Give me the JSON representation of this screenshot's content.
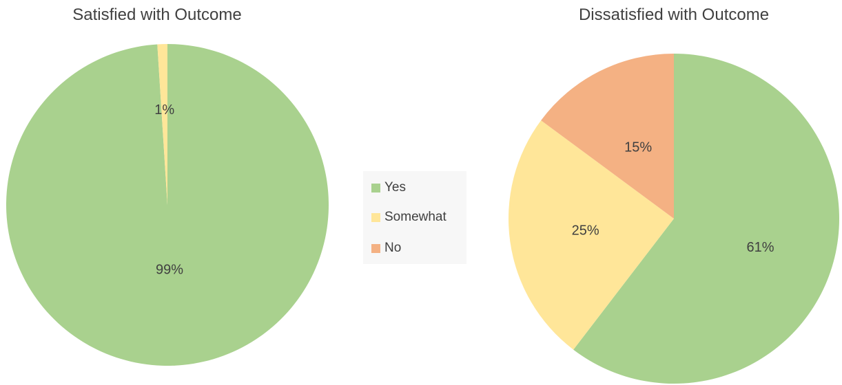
{
  "chart_data": [
    {
      "type": "pie",
      "title": "Satisfied with Outcome",
      "categories": [
        "Yes",
        "Somewhat",
        "No"
      ],
      "values": [
        99,
        1,
        0
      ],
      "labels": [
        "99%",
        "1%",
        ""
      ],
      "colors": [
        "#a9d18e",
        "#ffe699",
        "#f4b183"
      ]
    },
    {
      "type": "pie",
      "title": "Dissatisfied with Outcome",
      "categories": [
        "Yes",
        "Somewhat",
        "No"
      ],
      "values": [
        61,
        25,
        15
      ],
      "labels": [
        "61%",
        "25%",
        "15%"
      ],
      "colors": [
        "#a9d18e",
        "#ffe699",
        "#f4b183"
      ]
    }
  ],
  "legend": {
    "items": [
      {
        "label": "Yes",
        "color": "#a9d18e"
      },
      {
        "label": "Somewhat",
        "color": "#ffe699"
      },
      {
        "label": "No",
        "color": "#f4b183"
      }
    ]
  }
}
